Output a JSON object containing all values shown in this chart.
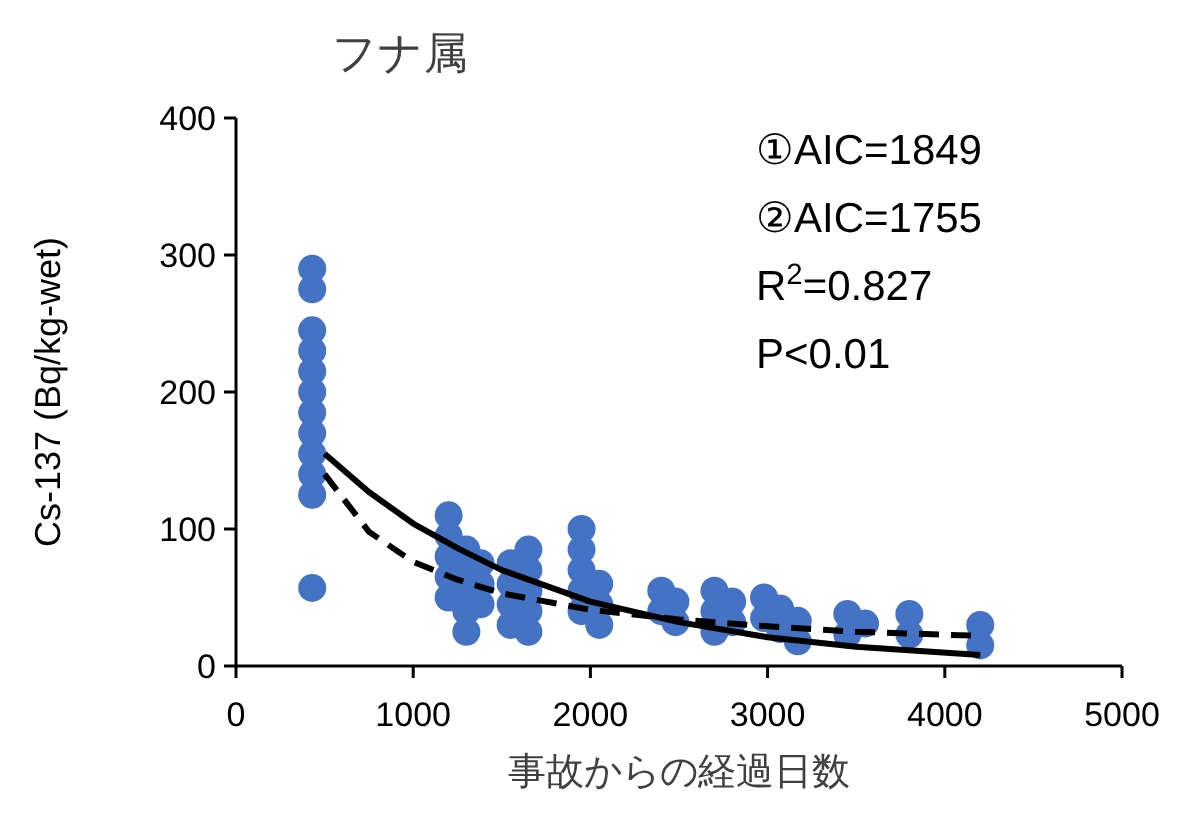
{
  "chart_data": {
    "type": "scatter",
    "title": "フナ属",
    "xlabel": "事故からの経過日数",
    "ylabel": "Cs-137 (Bq/kg-wet)",
    "annotations": [
      "①AIC=1849",
      "②AIC=1755",
      "R$^{2}$=0.827",
      "P<0.01"
    ],
    "xlim": [
      0,
      5000
    ],
    "xticks": [
      0,
      1000,
      2000,
      3000,
      4000,
      5000
    ],
    "ylim": [
      0,
      400
    ],
    "yticks": [
      0,
      100,
      200,
      300,
      400
    ],
    "grid": false,
    "marker": "circle",
    "series": [
      {
        "color": "#4472c4",
        "x": [
          430,
          430,
          430,
          430,
          430,
          430,
          430,
          430,
          430,
          430,
          430,
          430,
          1200,
          1200,
          1200,
          1200,
          1200,
          1300,
          1300,
          1300,
          1300,
          1300,
          1380,
          1380,
          1380,
          1550,
          1550,
          1550,
          1550,
          1650,
          1650,
          1650,
          1650,
          1650,
          1950,
          1950,
          1950,
          1950,
          1950,
          2050,
          2050,
          2050,
          2400,
          2400,
          2480,
          2480,
          2700,
          2700,
          2700,
          2800,
          2800,
          2980,
          2980,
          3070,
          3070,
          3170,
          3170,
          3450,
          3450,
          3550,
          3800,
          3800,
          4200,
          4200
        ],
        "values": [
          290,
          275,
          245,
          230,
          215,
          200,
          185,
          170,
          155,
          140,
          125,
          57,
          110,
          95,
          80,
          65,
          50,
          85,
          70,
          55,
          40,
          25,
          75,
          60,
          45,
          75,
          60,
          45,
          30,
          85,
          70,
          55,
          40,
          25,
          100,
          85,
          70,
          55,
          40,
          60,
          45,
          30,
          55,
          40,
          47,
          32,
          55,
          40,
          25,
          47,
          32,
          50,
          35,
          42,
          27,
          33,
          18,
          38,
          23,
          31,
          38,
          23,
          30,
          15
        ]
      },
      {
        "type": "line",
        "color": "#000000",
        "line_style": "solid",
        "marker": "none",
        "x": [
          500,
          750,
          1000,
          1250,
          1500,
          2000,
          2500,
          3000,
          3500,
          4200
        ],
        "values": [
          155,
          127,
          104,
          86,
          70,
          47,
          32,
          21,
          14,
          8
        ]
      },
      {
        "type": "line",
        "color": "#000000",
        "line_style": "dashed",
        "marker": "none",
        "x": [
          500,
          750,
          1000,
          1250,
          1500,
          2000,
          2500,
          3000,
          3500,
          4200
        ],
        "values": [
          140,
          98,
          76,
          63,
          53,
          41,
          34,
          29,
          25,
          22
        ]
      }
    ]
  }
}
